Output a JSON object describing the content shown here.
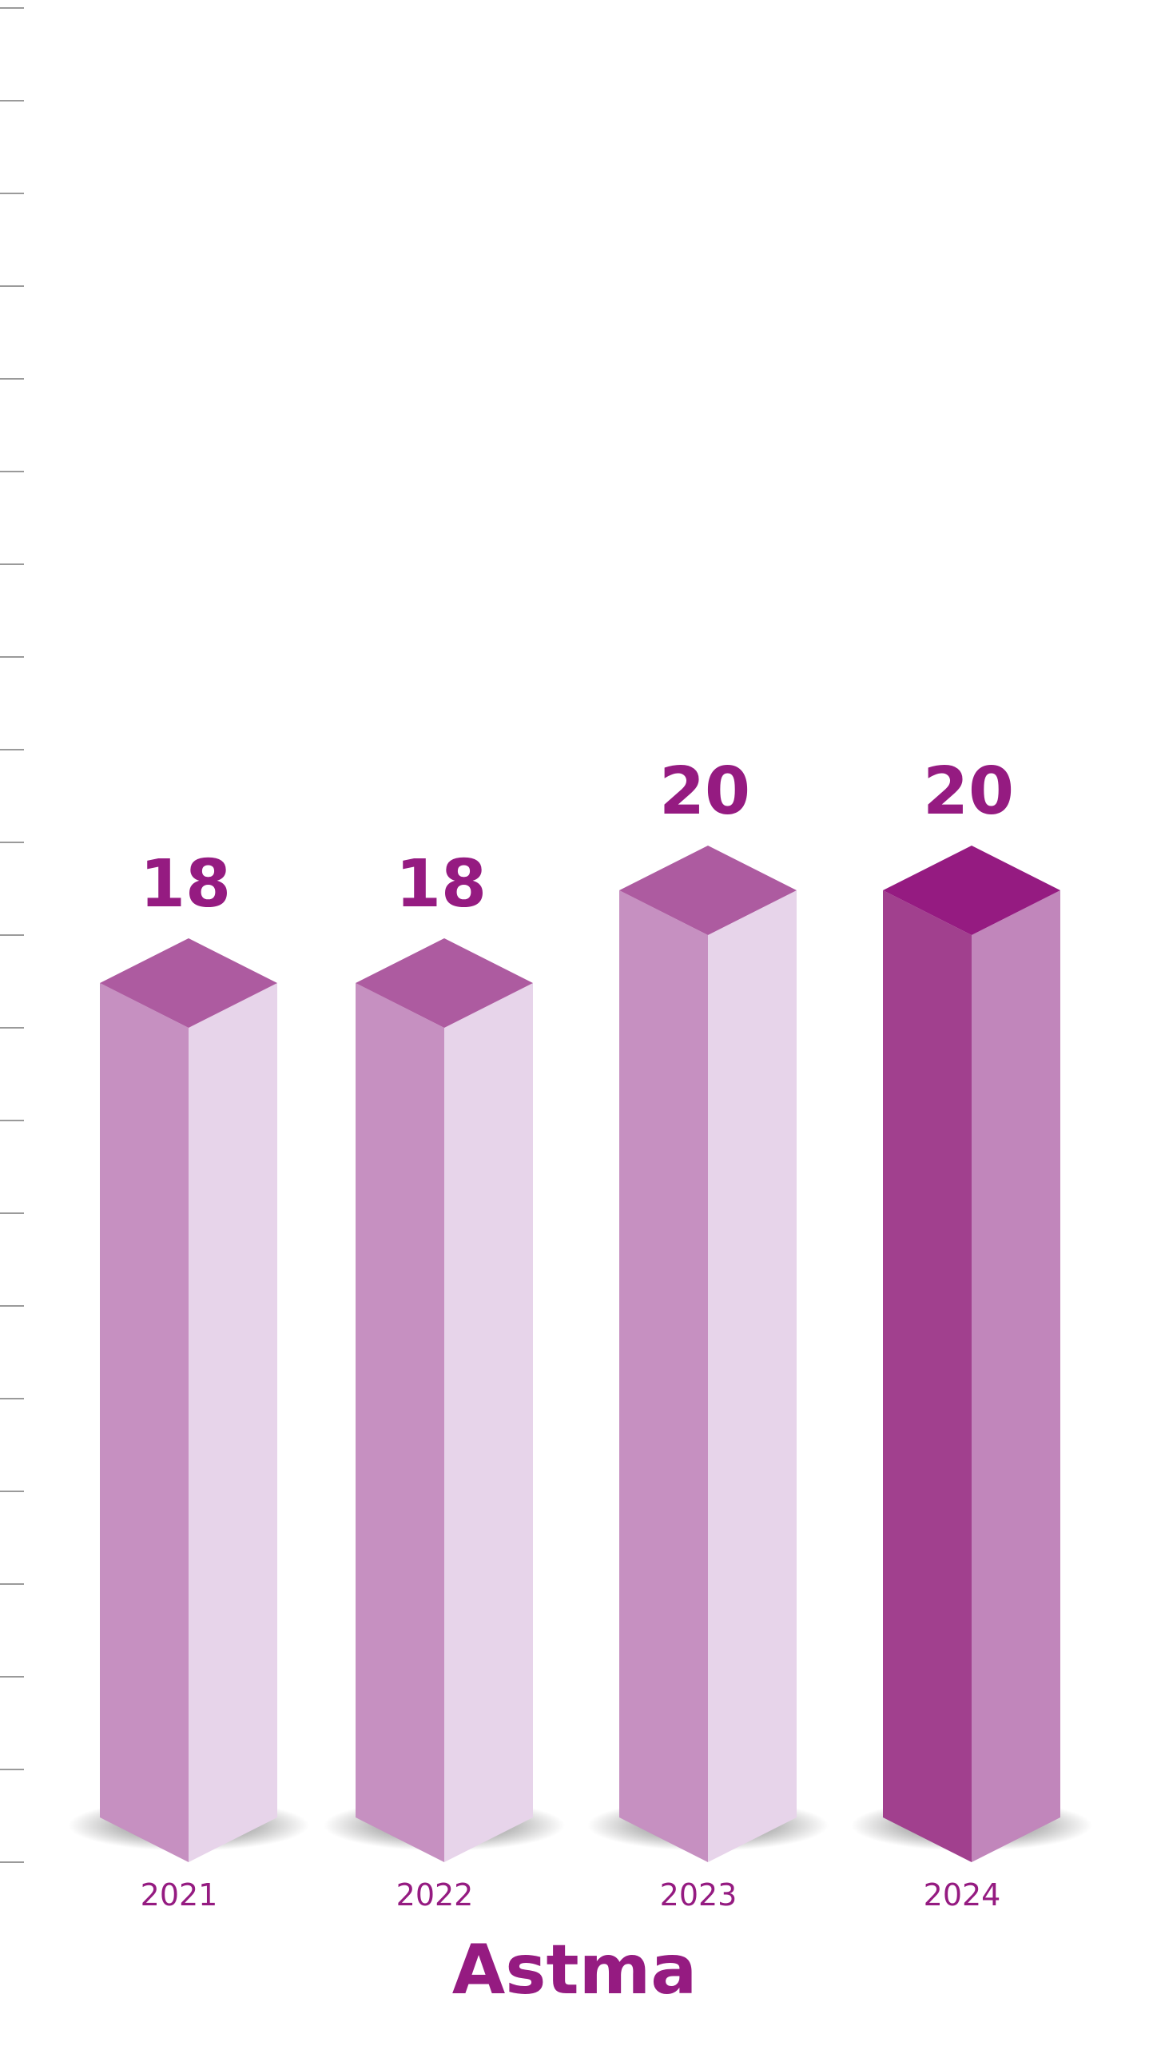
{
  "chart_data": {
    "type": "bar",
    "title": "Astma",
    "xlabel": "",
    "ylabel": "",
    "categories": [
      "2021",
      "2022",
      "2023",
      "2024"
    ],
    "values": [
      18,
      18,
      20,
      20
    ],
    "value_labels": [
      "18",
      "18",
      "20",
      "20"
    ],
    "ylim": [
      0,
      40
    ],
    "tick_step": 2,
    "grid": false,
    "legend": "none",
    "highlight_category": "2024",
    "colors": {
      "label_text": "#951b81",
      "title_text": "#951b81",
      "bar_top": "#ad5ba0",
      "bar_left": "#c690c1",
      "bar_right": "#e7d4ea",
      "highlight_top": "#951b81",
      "highlight_left": "#a1408e",
      "highlight_right": "#c186bb",
      "tick": "#9a9a9a"
    }
  }
}
